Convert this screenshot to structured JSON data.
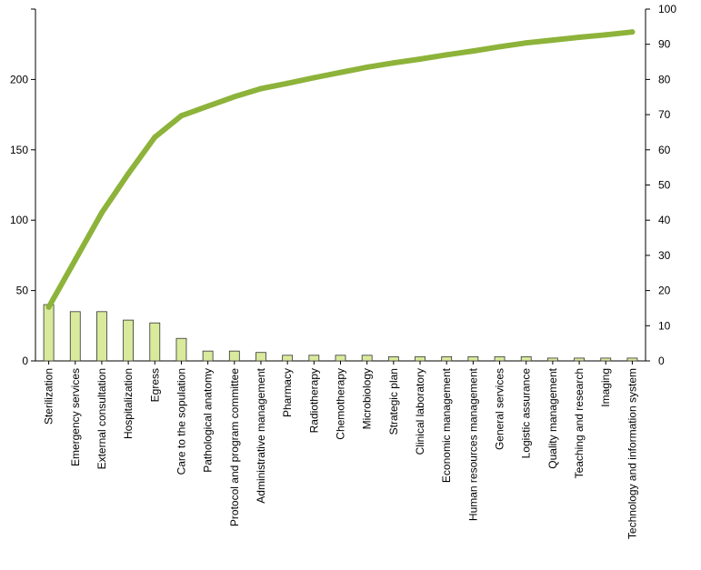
{
  "chart_data": {
    "type": "bar",
    "categories": [
      "Sterilization",
      "Emergency services",
      "External consultation",
      "Hospitalization",
      "Egress",
      "Care to the sopulation",
      "Pathological anatomy",
      "Protocol and program committee",
      "Administrative management",
      "Pharmacy",
      "Radiotherapy",
      "Chemotherapy",
      "Microbiology",
      "Strategic plan",
      "Clinical laboratory",
      "Economic management",
      "Human resources management",
      "General services",
      "Logistic assurance",
      "Quality management",
      "Teaching and research",
      "Imaging",
      "Technology and information system"
    ],
    "series": [
      {
        "kind": "bar",
        "axis": "left",
        "values": [
          40,
          35,
          35,
          29,
          27,
          16,
          7,
          7,
          6,
          4,
          4,
          4,
          4,
          3,
          3,
          3,
          3,
          3,
          3,
          2,
          2,
          2,
          2
        ]
      },
      {
        "kind": "line",
        "axis": "right",
        "values": [
          15.3,
          28.7,
          42.1,
          53.2,
          63.6,
          69.7,
          72.4,
          75.1,
          77.4,
          78.9,
          80.5,
          82.0,
          83.5,
          84.7,
          85.8,
          87.0,
          88.1,
          89.3,
          90.4,
          91.2,
          92.0,
          92.7,
          93.5
        ]
      }
    ],
    "y_left": {
      "ylim": [
        0,
        250
      ],
      "ticks": [
        "0",
        "50",
        "100",
        "150",
        "200"
      ]
    },
    "y_right": {
      "ylim": [
        0,
        100
      ],
      "ticks": [
        "0",
        "10",
        "20",
        "30",
        "40",
        "50",
        "60",
        "70",
        "80",
        "90",
        "100"
      ]
    },
    "colors": {
      "bar_fill": "#d9ea9c",
      "line": "#8db33a"
    },
    "grid": false,
    "legend": "none"
  }
}
